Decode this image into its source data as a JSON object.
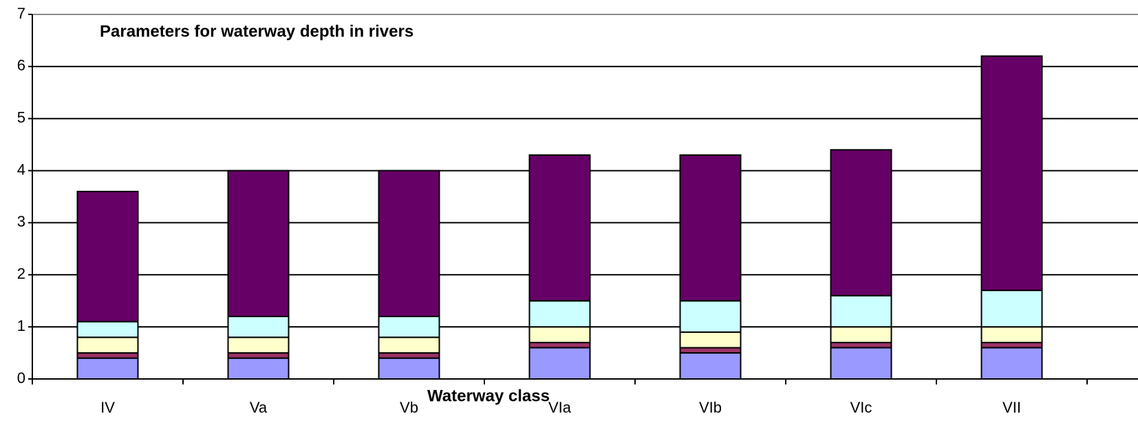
{
  "chart_data": {
    "type": "stacked_bar",
    "title": "Parameters for waterway depth in rivers",
    "x_label": "Waterway class",
    "categories": [
      "IV",
      "Va",
      "Vb",
      "VIa",
      "VIb",
      "VIc",
      "VII"
    ],
    "series": [
      {
        "color": "#9999ff",
        "values": [
          0.4,
          0.4,
          0.4,
          0.6,
          0.5,
          0.6,
          0.6
        ]
      },
      {
        "color": "#993366",
        "values": [
          0.1,
          0.1,
          0.1,
          0.1,
          0.1,
          0.1,
          0.1
        ]
      },
      {
        "color": "#ffffcc",
        "values": [
          0.3,
          0.3,
          0.3,
          0.3,
          0.3,
          0.3,
          0.3
        ]
      },
      {
        "color": "#ccffff",
        "values": [
          0.3,
          0.4,
          0.4,
          0.5,
          0.6,
          0.6,
          0.7
        ]
      },
      {
        "color": "#660066",
        "values": [
          2.5,
          2.8,
          2.8,
          2.8,
          2.8,
          2.8,
          4.5
        ]
      }
    ],
    "ylim": [
      0,
      7
    ],
    "yticks": [
      0,
      1,
      2,
      3,
      4,
      5,
      6,
      7
    ],
    "grid": true
  }
}
